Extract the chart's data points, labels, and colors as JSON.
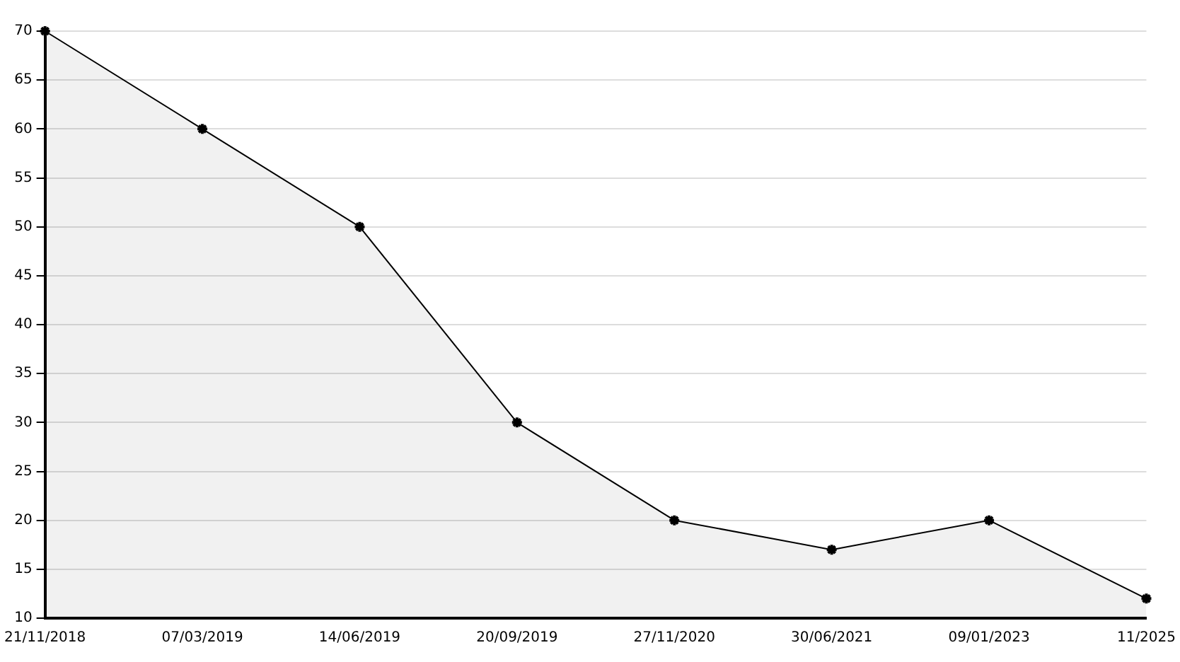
{
  "chart_data": {
    "type": "area",
    "categories": [
      "21/11/2018",
      "07/03/2019",
      "14/06/2019",
      "20/09/2019",
      "27/11/2020",
      "30/06/2021",
      "09/01/2023",
      "11/2025"
    ],
    "series": [
      {
        "color": "#000000",
        "values": [
          70,
          60,
          50,
          30,
          20,
          17,
          20,
          12
        ]
      }
    ],
    "ylim": [
      10,
      70
    ],
    "yticks": [
      10,
      15,
      20,
      25,
      30,
      35,
      40,
      45,
      50,
      55,
      60,
      65,
      70
    ],
    "grid": "y",
    "marker": "cross",
    "line_style": "solid",
    "legend": false
  }
}
